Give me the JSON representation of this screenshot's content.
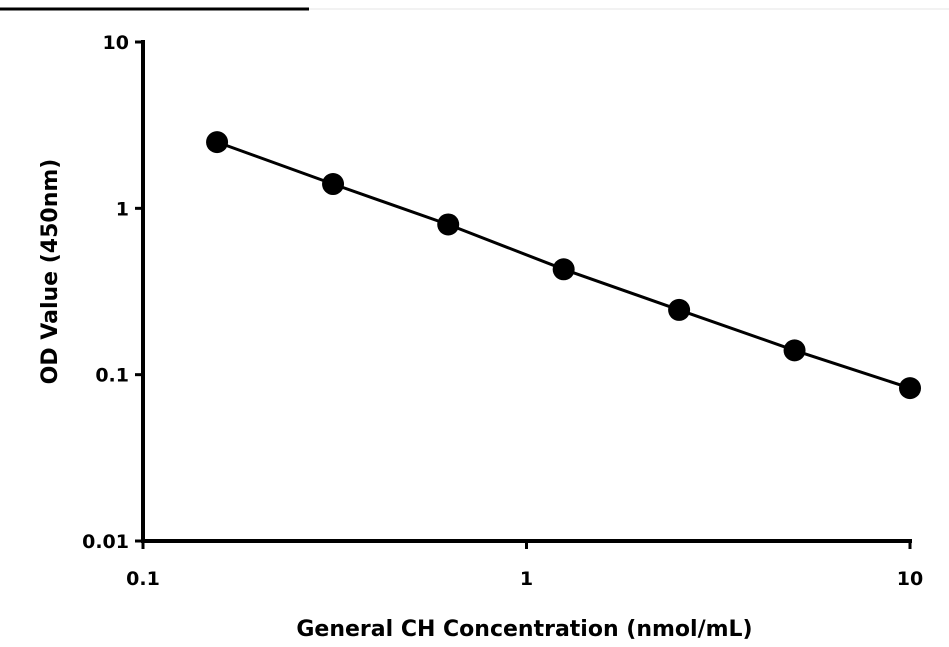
{
  "chart_data": {
    "type": "scatter",
    "xlabel": "General CH Concentration  (nmol/mL)",
    "ylabel": "OD Value (450nm)",
    "xscale": "log",
    "yscale": "log",
    "xlim": [
      0.1,
      10
    ],
    "ylim": [
      0.01,
      10
    ],
    "xticks": [
      0.1,
      1,
      10
    ],
    "yticks": [
      0.01,
      0.1,
      1,
      10
    ],
    "xtick_labels": [
      "0.1",
      "1",
      "10"
    ],
    "ytick_labels": [
      "0.01",
      "0.1",
      "1",
      "10"
    ],
    "grid": false,
    "legend": "none",
    "series": [
      {
        "x": [
          0.156,
          0.313,
          0.625,
          1.25,
          2.5,
          5,
          10
        ],
        "y": [
          2.5,
          1.4,
          0.8,
          0.43,
          0.245,
          0.14,
          0.083
        ],
        "color": "#000000",
        "marker": "circle",
        "line": "fit"
      }
    ]
  }
}
